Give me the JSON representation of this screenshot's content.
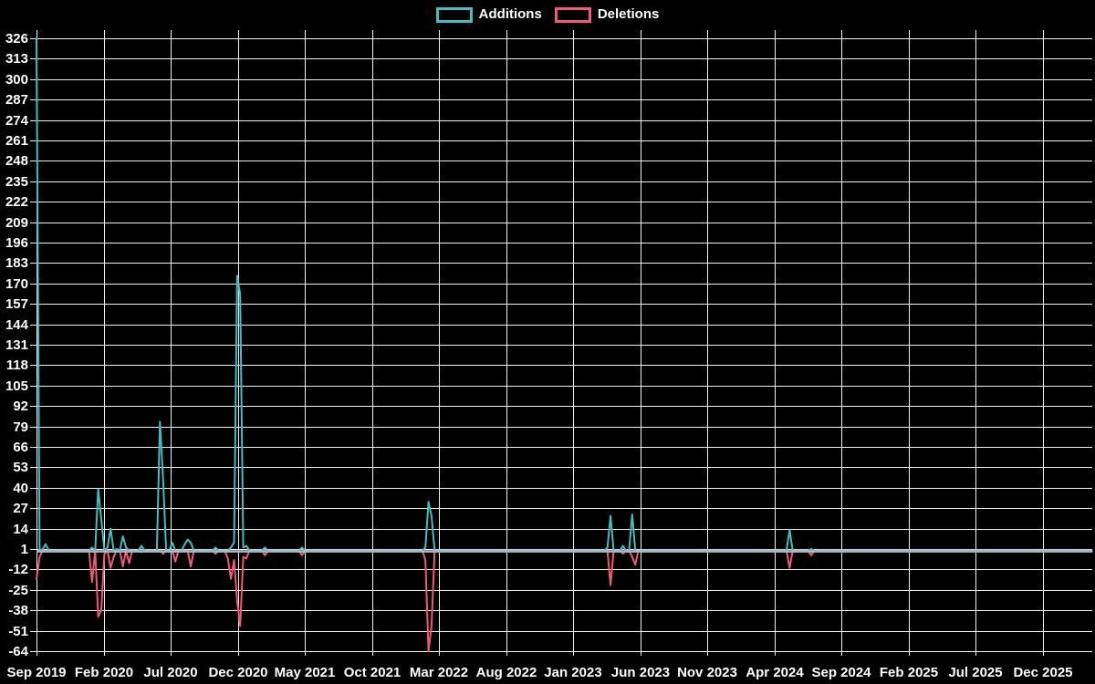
{
  "chart_data": {
    "type": "line",
    "title": "",
    "legend": [
      {
        "label": "Additions",
        "color": "#46bdbe"
      },
      {
        "label": "Deletions",
        "color": "#f1587a"
      }
    ],
    "y_axis": {
      "min": -64,
      "max": 326,
      "tick_step": 13,
      "tick_labels": [
        326,
        313,
        300,
        287,
        274,
        261,
        248,
        235,
        222,
        209,
        196,
        183,
        170,
        157,
        144,
        131,
        118,
        105,
        92,
        79,
        66,
        53,
        40,
        27,
        14,
        1,
        -12,
        -25,
        -38,
        -51,
        -64
      ]
    },
    "x_axis": {
      "tick_labels": [
        "Sep 2019",
        "Feb 2020",
        "Jul 2020",
        "Dec 2020",
        "May 2021",
        "Oct 2021",
        "Mar 2022",
        "Aug 2022",
        "Jan 2023",
        "Jun 2023",
        "Nov 2023",
        "Apr 2024",
        "Sep 2024",
        "Feb 2025",
        "Jul 2025",
        "Dec 2025"
      ],
      "months_per_tick": 5,
      "weeks_per_tick": 21.74,
      "weeks_total": 342
    },
    "series": [
      {
        "name": "Additions",
        "color": "#46bdbe",
        "default_value": 0,
        "sparse_points": {
          "0": 326,
          "2": 1,
          "3": 4,
          "18": 2,
          "20": 39,
          "21": 20,
          "23": 2,
          "24": 14,
          "26": 1,
          "28": 9,
          "29": 2,
          "34": 3,
          "40": 82,
          "41": 46,
          "44": 5,
          "48": 4,
          "49": 7,
          "50": 5,
          "58": 2,
          "63": 2,
          "64": 5,
          "65": 175,
          "66": 163,
          "67": 2,
          "68": 3,
          "74": 2,
          "86": 2,
          "126": 2,
          "127": 31,
          "128": 22,
          "185": 2,
          "186": 22,
          "190": 3,
          "193": 23,
          "244": 13,
          "251": 1
        }
      },
      {
        "name": "Deletions",
        "color": "#f1587a",
        "default_value": 0,
        "sparse_points": {
          "0": -18,
          "1": -4,
          "18": -20,
          "20": -42,
          "21": -38,
          "22": -2,
          "24": -11,
          "25": -4,
          "28": -10,
          "30": -8,
          "34": -1,
          "41": -2,
          "45": -7,
          "50": -10,
          "58": -2,
          "62": -5,
          "63": -18,
          "64": -6,
          "65": -32,
          "66": -48,
          "67": -4,
          "68": -5,
          "74": -3,
          "86": -3,
          "126": -6,
          "127": -64,
          "128": -48,
          "186": -22,
          "190": -2,
          "193": -4,
          "194": -9,
          "244": -11,
          "251": -3
        }
      }
    ],
    "baseline": {
      "value": 0,
      "overlap_color": "#a6bcc9"
    },
    "layout_hints": {
      "grid": "on",
      "legend_position": "top-center",
      "background": "#000000",
      "grid_color": "#f0f0f0",
      "text_color": "#ffffff"
    }
  }
}
